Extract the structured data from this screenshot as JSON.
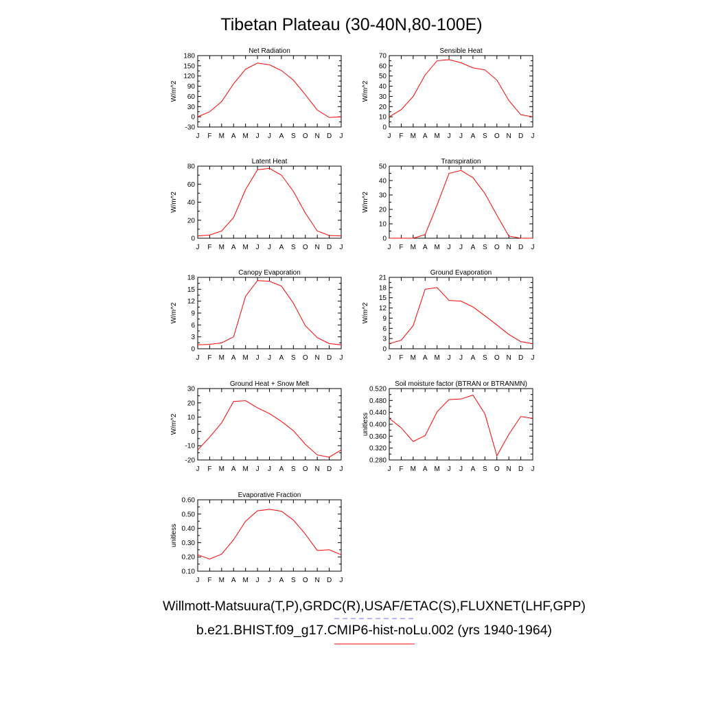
{
  "title": "Tibetan Plateau (30-40N,80-100E)",
  "footer": {
    "line1": "Willmott-Matsuura(T,P),GRDC(R),USAF/ETAC(S),FLUXNET(LHF,GPP)",
    "line2": "b.e21.BHIST.f09_g17.CMIP6-hist-noLu.002 (yrs 1940-1964)",
    "obs_color": "#6a6aff",
    "model_color": "#ff0000"
  },
  "months": [
    "J",
    "F",
    "M",
    "A",
    "M",
    "J",
    "J",
    "A",
    "S",
    "O",
    "N",
    "D",
    "J"
  ],
  "chart_data": [
    {
      "type": "line",
      "title": "Net Radiation",
      "ylabel": "W/m^2",
      "ylim": [
        -30,
        180
      ],
      "yticks": [
        "-30",
        "0",
        "30",
        "60",
        "90",
        "120",
        "150",
        "180"
      ],
      "x": [
        "J",
        "F",
        "M",
        "A",
        "M",
        "J",
        "J",
        "A",
        "S",
        "O",
        "N",
        "D",
        "J"
      ],
      "series": [
        {
          "color": "#ff0000",
          "values": [
            0,
            15,
            45,
            97,
            140,
            158,
            153,
            136,
            108,
            65,
            20,
            -2,
            0
          ]
        }
      ]
    },
    {
      "type": "line",
      "title": "Sensible Heat",
      "ylabel": "W/m^2",
      "ylim": [
        0,
        70
      ],
      "yticks": [
        "0",
        "10",
        "20",
        "30",
        "40",
        "50",
        "60",
        "70"
      ],
      "x": [
        "J",
        "F",
        "M",
        "A",
        "M",
        "J",
        "J",
        "A",
        "S",
        "O",
        "N",
        "D",
        "J"
      ],
      "series": [
        {
          "color": "#ff0000",
          "values": [
            10,
            17,
            30,
            51,
            65,
            66,
            63,
            58,
            56,
            46,
            26,
            12,
            10
          ]
        }
      ]
    },
    {
      "type": "line",
      "title": "Latent Heat",
      "ylabel": "W/m^2",
      "ylim": [
        0,
        80
      ],
      "yticks": [
        "0",
        "20",
        "40",
        "60",
        "80"
      ],
      "x": [
        "J",
        "F",
        "M",
        "A",
        "M",
        "J",
        "J",
        "A",
        "S",
        "O",
        "N",
        "D",
        "J"
      ],
      "series": [
        {
          "color": "#ff0000",
          "values": [
            2.5,
            3.5,
            8,
            23,
            54,
            76,
            77.5,
            70,
            52,
            28,
            8,
            3,
            2.5
          ]
        }
      ]
    },
    {
      "type": "line",
      "title": "Transpiration",
      "ylabel": "W/m^2",
      "ylim": [
        0,
        50
      ],
      "yticks": [
        "0",
        "10",
        "20",
        "30",
        "40",
        "50"
      ],
      "x": [
        "J",
        "F",
        "M",
        "A",
        "M",
        "J",
        "J",
        "A",
        "S",
        "O",
        "N",
        "D",
        "J"
      ],
      "series": [
        {
          "color": "#ff0000",
          "values": [
            0,
            0,
            0,
            2.5,
            23,
            45,
            47,
            42,
            31,
            16,
            1.5,
            0,
            0
          ]
        }
      ]
    },
    {
      "type": "line",
      "title": "Canopy Evaporation",
      "ylabel": "W/m^2",
      "ylim": [
        0,
        18
      ],
      "yticks": [
        "0",
        "3",
        "6",
        "9",
        "12",
        "15",
        "18"
      ],
      "x": [
        "J",
        "F",
        "M",
        "A",
        "M",
        "J",
        "J",
        "A",
        "S",
        "O",
        "N",
        "D",
        "J"
      ],
      "series": [
        {
          "color": "#ff0000",
          "values": [
            1,
            1.1,
            1.5,
            3,
            13.2,
            17.2,
            17,
            15.8,
            11.5,
            5.8,
            2.8,
            1.3,
            1
          ]
        }
      ]
    },
    {
      "type": "line",
      "title": "Ground Evaporation",
      "ylabel": "W/m^2",
      "ylim": [
        0,
        21
      ],
      "yticks": [
        "0",
        "3",
        "6",
        "9",
        "12",
        "15",
        "18",
        "21"
      ],
      "x": [
        "J",
        "F",
        "M",
        "A",
        "M",
        "J",
        "J",
        "A",
        "S",
        "O",
        "N",
        "D",
        "J"
      ],
      "series": [
        {
          "color": "#ff0000",
          "values": [
            1.5,
            2.5,
            6.8,
            17.5,
            18,
            14.2,
            14,
            12.3,
            9.7,
            7,
            4.2,
            2.1,
            1.5
          ]
        }
      ]
    },
    {
      "type": "line",
      "title": "Ground Heat + Snow Melt",
      "ylabel": "W/m^2",
      "ylim": [
        -20,
        30
      ],
      "yticks": [
        "-20",
        "-10",
        "0",
        "10",
        "20",
        "30"
      ],
      "x": [
        "J",
        "F",
        "M",
        "A",
        "M",
        "J",
        "J",
        "A",
        "S",
        "O",
        "N",
        "D",
        "J"
      ],
      "series": [
        {
          "color": "#ff0000",
          "values": [
            -13,
            -4,
            6,
            21,
            21.5,
            16.5,
            12.5,
            7,
            0.5,
            -9,
            -16.5,
            -18,
            -13
          ]
        }
      ]
    },
    {
      "type": "line",
      "title": "Soil moisture factor (BTRAN or BTRANMN)",
      "ylabel": "unitless",
      "ylim": [
        0.28,
        0.52
      ],
      "yticks": [
        "0.280",
        "0.320",
        "0.360",
        "0.400",
        "0.440",
        "0.480",
        "0.520"
      ],
      "x": [
        "J",
        "F",
        "M",
        "A",
        "M",
        "J",
        "J",
        "A",
        "S",
        "O",
        "N",
        "D",
        "J"
      ],
      "series": [
        {
          "color": "#ff0000",
          "values": [
            0.42,
            0.388,
            0.342,
            0.362,
            0.442,
            0.483,
            0.485,
            0.498,
            0.435,
            0.294,
            0.366,
            0.426,
            0.42
          ]
        }
      ]
    },
    {
      "type": "line",
      "title": "Evaporative Fraction",
      "ylabel": "unitless",
      "ylim": [
        0.1,
        0.6
      ],
      "yticks": [
        "0.10",
        "0.20",
        "0.30",
        "0.40",
        "0.50",
        "0.60"
      ],
      "x": [
        "J",
        "F",
        "M",
        "A",
        "M",
        "J",
        "J",
        "A",
        "S",
        "O",
        "N",
        "D",
        "J"
      ],
      "series": [
        {
          "color": "#ff0000",
          "values": [
            0.215,
            0.185,
            0.22,
            0.32,
            0.45,
            0.523,
            0.533,
            0.52,
            0.458,
            0.36,
            0.245,
            0.25,
            0.215
          ]
        }
      ]
    }
  ]
}
